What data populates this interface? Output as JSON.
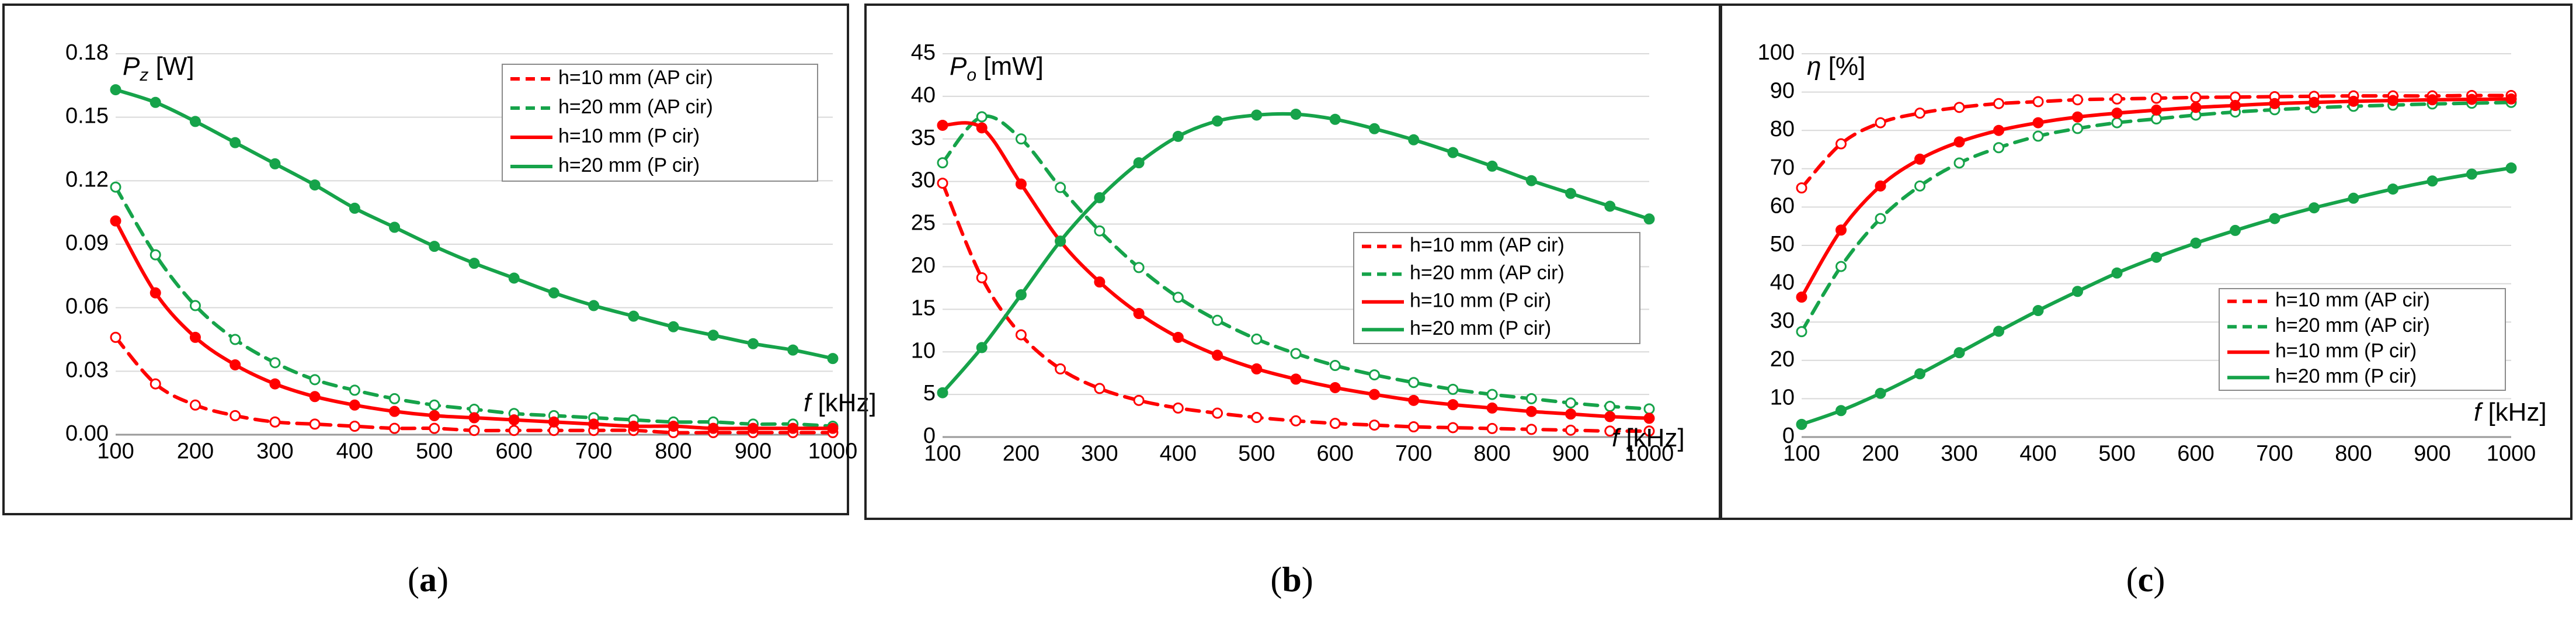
{
  "chart_data": [
    {
      "type": "line",
      "panel": "a",
      "caption_open": "(",
      "caption_letter": "a",
      "caption_close": ")",
      "ylabel_symbol": "P",
      "ylabel_sub": "z",
      "ylabel_unit": " [W]",
      "xlabel_symbol": "f",
      "xlabel_unit": " [kHz]",
      "xlim": [
        100,
        1000
      ],
      "ylim": [
        0,
        0.18
      ],
      "xticks": [
        "100",
        "200",
        "300",
        "400",
        "500",
        "600",
        "700",
        "800",
        "900",
        "1000"
      ],
      "yticks": [
        "0.00",
        "0.03",
        "0.06",
        "0.09",
        "0.12",
        "0.15",
        "0.18"
      ],
      "legend_position": "top-right",
      "x": [
        100,
        150,
        200,
        250,
        300,
        350,
        400,
        450,
        500,
        550,
        600,
        650,
        700,
        750,
        800,
        850,
        900,
        950,
        1000
      ],
      "series": [
        {
          "name": "h=10 mm (AP cir)",
          "color": "#ff0000",
          "dash": true,
          "marker": "open",
          "values": [
            0.046,
            0.024,
            0.014,
            0.009,
            0.006,
            0.005,
            0.004,
            0.003,
            0.003,
            0.002,
            0.002,
            0.002,
            0.002,
            0.002,
            0.001,
            0.001,
            0.001,
            0.001,
            0.001
          ]
        },
        {
          "name": "h=20 mm (AP cir)",
          "color": "#16a34a",
          "dash": true,
          "marker": "open",
          "values": [
            0.117,
            0.085,
            0.061,
            0.045,
            0.034,
            0.026,
            0.021,
            0.017,
            0.014,
            0.012,
            0.01,
            0.009,
            0.008,
            0.007,
            0.006,
            0.006,
            0.005,
            0.005,
            0.004
          ]
        },
        {
          "name": "h=10 mm (P cir)",
          "color": "#ff0000",
          "dash": false,
          "marker": "filled",
          "values": [
            0.101,
            0.067,
            0.046,
            0.033,
            0.024,
            0.018,
            0.014,
            0.011,
            0.009,
            0.008,
            0.007,
            0.006,
            0.005,
            0.004,
            0.004,
            0.003,
            0.003,
            0.003,
            0.003
          ]
        },
        {
          "name": "h=20 mm (P cir)",
          "color": "#16a34a",
          "dash": false,
          "marker": "filled",
          "values": [
            0.163,
            0.157,
            0.148,
            0.138,
            0.128,
            0.118,
            0.107,
            0.098,
            0.089,
            0.081,
            0.074,
            0.067,
            0.061,
            0.056,
            0.051,
            0.047,
            0.043,
            0.04,
            0.036
          ]
        }
      ]
    },
    {
      "type": "line",
      "panel": "b",
      "caption_open": "(",
      "caption_letter": "b",
      "caption_close": ")",
      "ylabel_symbol": "P",
      "ylabel_sub": "o",
      "ylabel_unit": " [mW]",
      "xlabel_symbol": "f",
      "xlabel_unit": " [kHz]",
      "xlim": [
        100,
        1000
      ],
      "ylim": [
        0,
        45
      ],
      "xticks": [
        "100",
        "200",
        "300",
        "400",
        "500",
        "600",
        "700",
        "800",
        "900",
        "1000"
      ],
      "yticks": [
        "0",
        "5",
        "10",
        "15",
        "20",
        "25",
        "30",
        "35",
        "40",
        "45"
      ],
      "legend_position": "center-right",
      "x": [
        100,
        150,
        200,
        250,
        300,
        350,
        400,
        450,
        500,
        550,
        600,
        650,
        700,
        750,
        800,
        850,
        900,
        950,
        1000
      ],
      "series": [
        {
          "name": "h=10 mm (AP cir)",
          "color": "#ff0000",
          "dash": true,
          "marker": "open",
          "values": [
            29.8,
            18.7,
            12.0,
            8.0,
            5.7,
            4.3,
            3.4,
            2.8,
            2.3,
            1.9,
            1.6,
            1.4,
            1.2,
            1.1,
            1.0,
            0.9,
            0.8,
            0.7,
            0.7
          ]
        },
        {
          "name": "h=20 mm (AP cir)",
          "color": "#16a34a",
          "dash": true,
          "marker": "open",
          "values": [
            32.2,
            37.6,
            35.0,
            29.3,
            24.2,
            19.9,
            16.4,
            13.7,
            11.5,
            9.8,
            8.4,
            7.3,
            6.4,
            5.6,
            5.0,
            4.5,
            4.0,
            3.6,
            3.3
          ]
        },
        {
          "name": "h=10 mm (P cir)",
          "color": "#ff0000",
          "dash": false,
          "marker": "filled",
          "values": [
            36.6,
            36.3,
            29.7,
            23.0,
            18.2,
            14.5,
            11.7,
            9.6,
            8.0,
            6.8,
            5.8,
            5.0,
            4.3,
            3.8,
            3.4,
            3.0,
            2.7,
            2.4,
            2.2
          ]
        },
        {
          "name": "h=20 mm (P cir)",
          "color": "#16a34a",
          "dash": false,
          "marker": "filled",
          "values": [
            5.2,
            10.5,
            16.7,
            23.0,
            28.1,
            32.2,
            35.3,
            37.1,
            37.8,
            37.9,
            37.3,
            36.2,
            34.9,
            33.4,
            31.8,
            30.1,
            28.6,
            27.1,
            25.6
          ]
        }
      ]
    },
    {
      "type": "line",
      "panel": "c",
      "caption_open": "(",
      "caption_letter": "c",
      "caption_close": ")",
      "ylabel_symbol": "η",
      "ylabel_sub": "",
      "ylabel_unit": " [%]",
      "xlabel_symbol": "f",
      "xlabel_unit": " [kHz]",
      "xlim": [
        100,
        1000
      ],
      "ylim": [
        0,
        100
      ],
      "xticks": [
        "100",
        "200",
        "300",
        "400",
        "500",
        "600",
        "700",
        "800",
        "900",
        "1000"
      ],
      "yticks": [
        "0",
        "10",
        "20",
        "30",
        "40",
        "50",
        "60",
        "70",
        "80",
        "90",
        "100"
      ],
      "legend_position": "bottom-right",
      "x": [
        100,
        150,
        200,
        250,
        300,
        350,
        400,
        450,
        500,
        550,
        600,
        650,
        700,
        750,
        800,
        850,
        900,
        950,
        1000
      ],
      "series": [
        {
          "name": "h=10 mm (AP cir)",
          "color": "#ff0000",
          "dash": true,
          "marker": "open",
          "values": [
            65,
            76.5,
            82,
            84.5,
            86,
            87,
            87.5,
            88,
            88.2,
            88.4,
            88.6,
            88.7,
            88.8,
            88.9,
            89,
            89,
            89,
            89.1,
            89.1
          ]
        },
        {
          "name": "h=20 mm (AP cir)",
          "color": "#16a34a",
          "dash": true,
          "marker": "open",
          "values": [
            27.5,
            44.5,
            57,
            65.5,
            71.5,
            75.5,
            78.5,
            80.5,
            82,
            83,
            84,
            84.8,
            85.4,
            85.9,
            86.3,
            86.6,
            86.9,
            87.1,
            87.3
          ]
        },
        {
          "name": "h=10 mm (P cir)",
          "color": "#ff0000",
          "dash": false,
          "marker": "filled",
          "values": [
            36.5,
            54,
            65.5,
            72.5,
            77,
            80,
            82,
            83.5,
            84.5,
            85.3,
            86,
            86.5,
            87,
            87.3,
            87.6,
            87.8,
            88,
            88.1,
            88.2
          ]
        },
        {
          "name": "h=20 mm (P cir)",
          "color": "#16a34a",
          "dash": false,
          "marker": "filled",
          "values": [
            3.3,
            6.9,
            11.4,
            16.5,
            22,
            27.6,
            33,
            38,
            42.8,
            46.9,
            50.6,
            53.9,
            57,
            59.8,
            62.3,
            64.7,
            66.8,
            68.6,
            70.2
          ]
        }
      ]
    }
  ]
}
